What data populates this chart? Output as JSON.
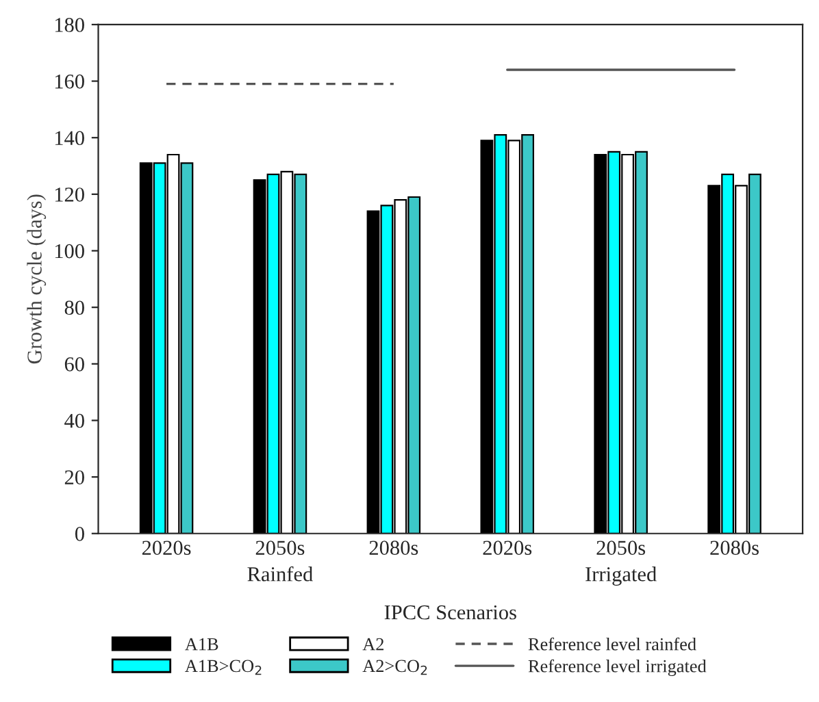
{
  "chart_data": {
    "type": "bar",
    "ylabel": "Growth cycle (days)",
    "xlabel": "IPCC Scenarios",
    "categories": [
      "2020s",
      "2050s",
      "2080s",
      "2020s",
      "2050s",
      "2080s"
    ],
    "series": [
      {
        "name": "A1B",
        "color": "#000000",
        "values": [
          131,
          125,
          114,
          139,
          134,
          123
        ]
      },
      {
        "name": "A1B>CO$_{2}$",
        "color": "#00ffff",
        "values": [
          131,
          127,
          116,
          141,
          135,
          127
        ]
      },
      {
        "name": "A2",
        "color": "#ffffff",
        "values": [
          134,
          128,
          118,
          139,
          134,
          123
        ]
      },
      {
        "name": "A2>CO$_{2}$",
        "color": "#3cc8c8",
        "values": [
          131,
          127,
          119,
          141,
          135,
          127
        ]
      },
      {
        "name": "Reference level rainfed",
        "type": "line",
        "color": "#555555",
        "line_style": "dashed",
        "values": [
          159,
          159,
          159,
          null,
          null,
          null
        ]
      },
      {
        "name": "Reference level irrigated",
        "type": "line",
        "color": "#555555",
        "line_style": "solid",
        "values": [
          null,
          null,
          null,
          164,
          164,
          164
        ]
      }
    ],
    "annotations": [
      "Rainfed",
      "Irrigated"
    ],
    "ylim": [
      0,
      180
    ],
    "yticks": [
      0,
      20,
      40,
      60,
      80,
      100,
      120,
      140,
      160,
      180
    ],
    "legend": "bottom",
    "grid": false
  }
}
